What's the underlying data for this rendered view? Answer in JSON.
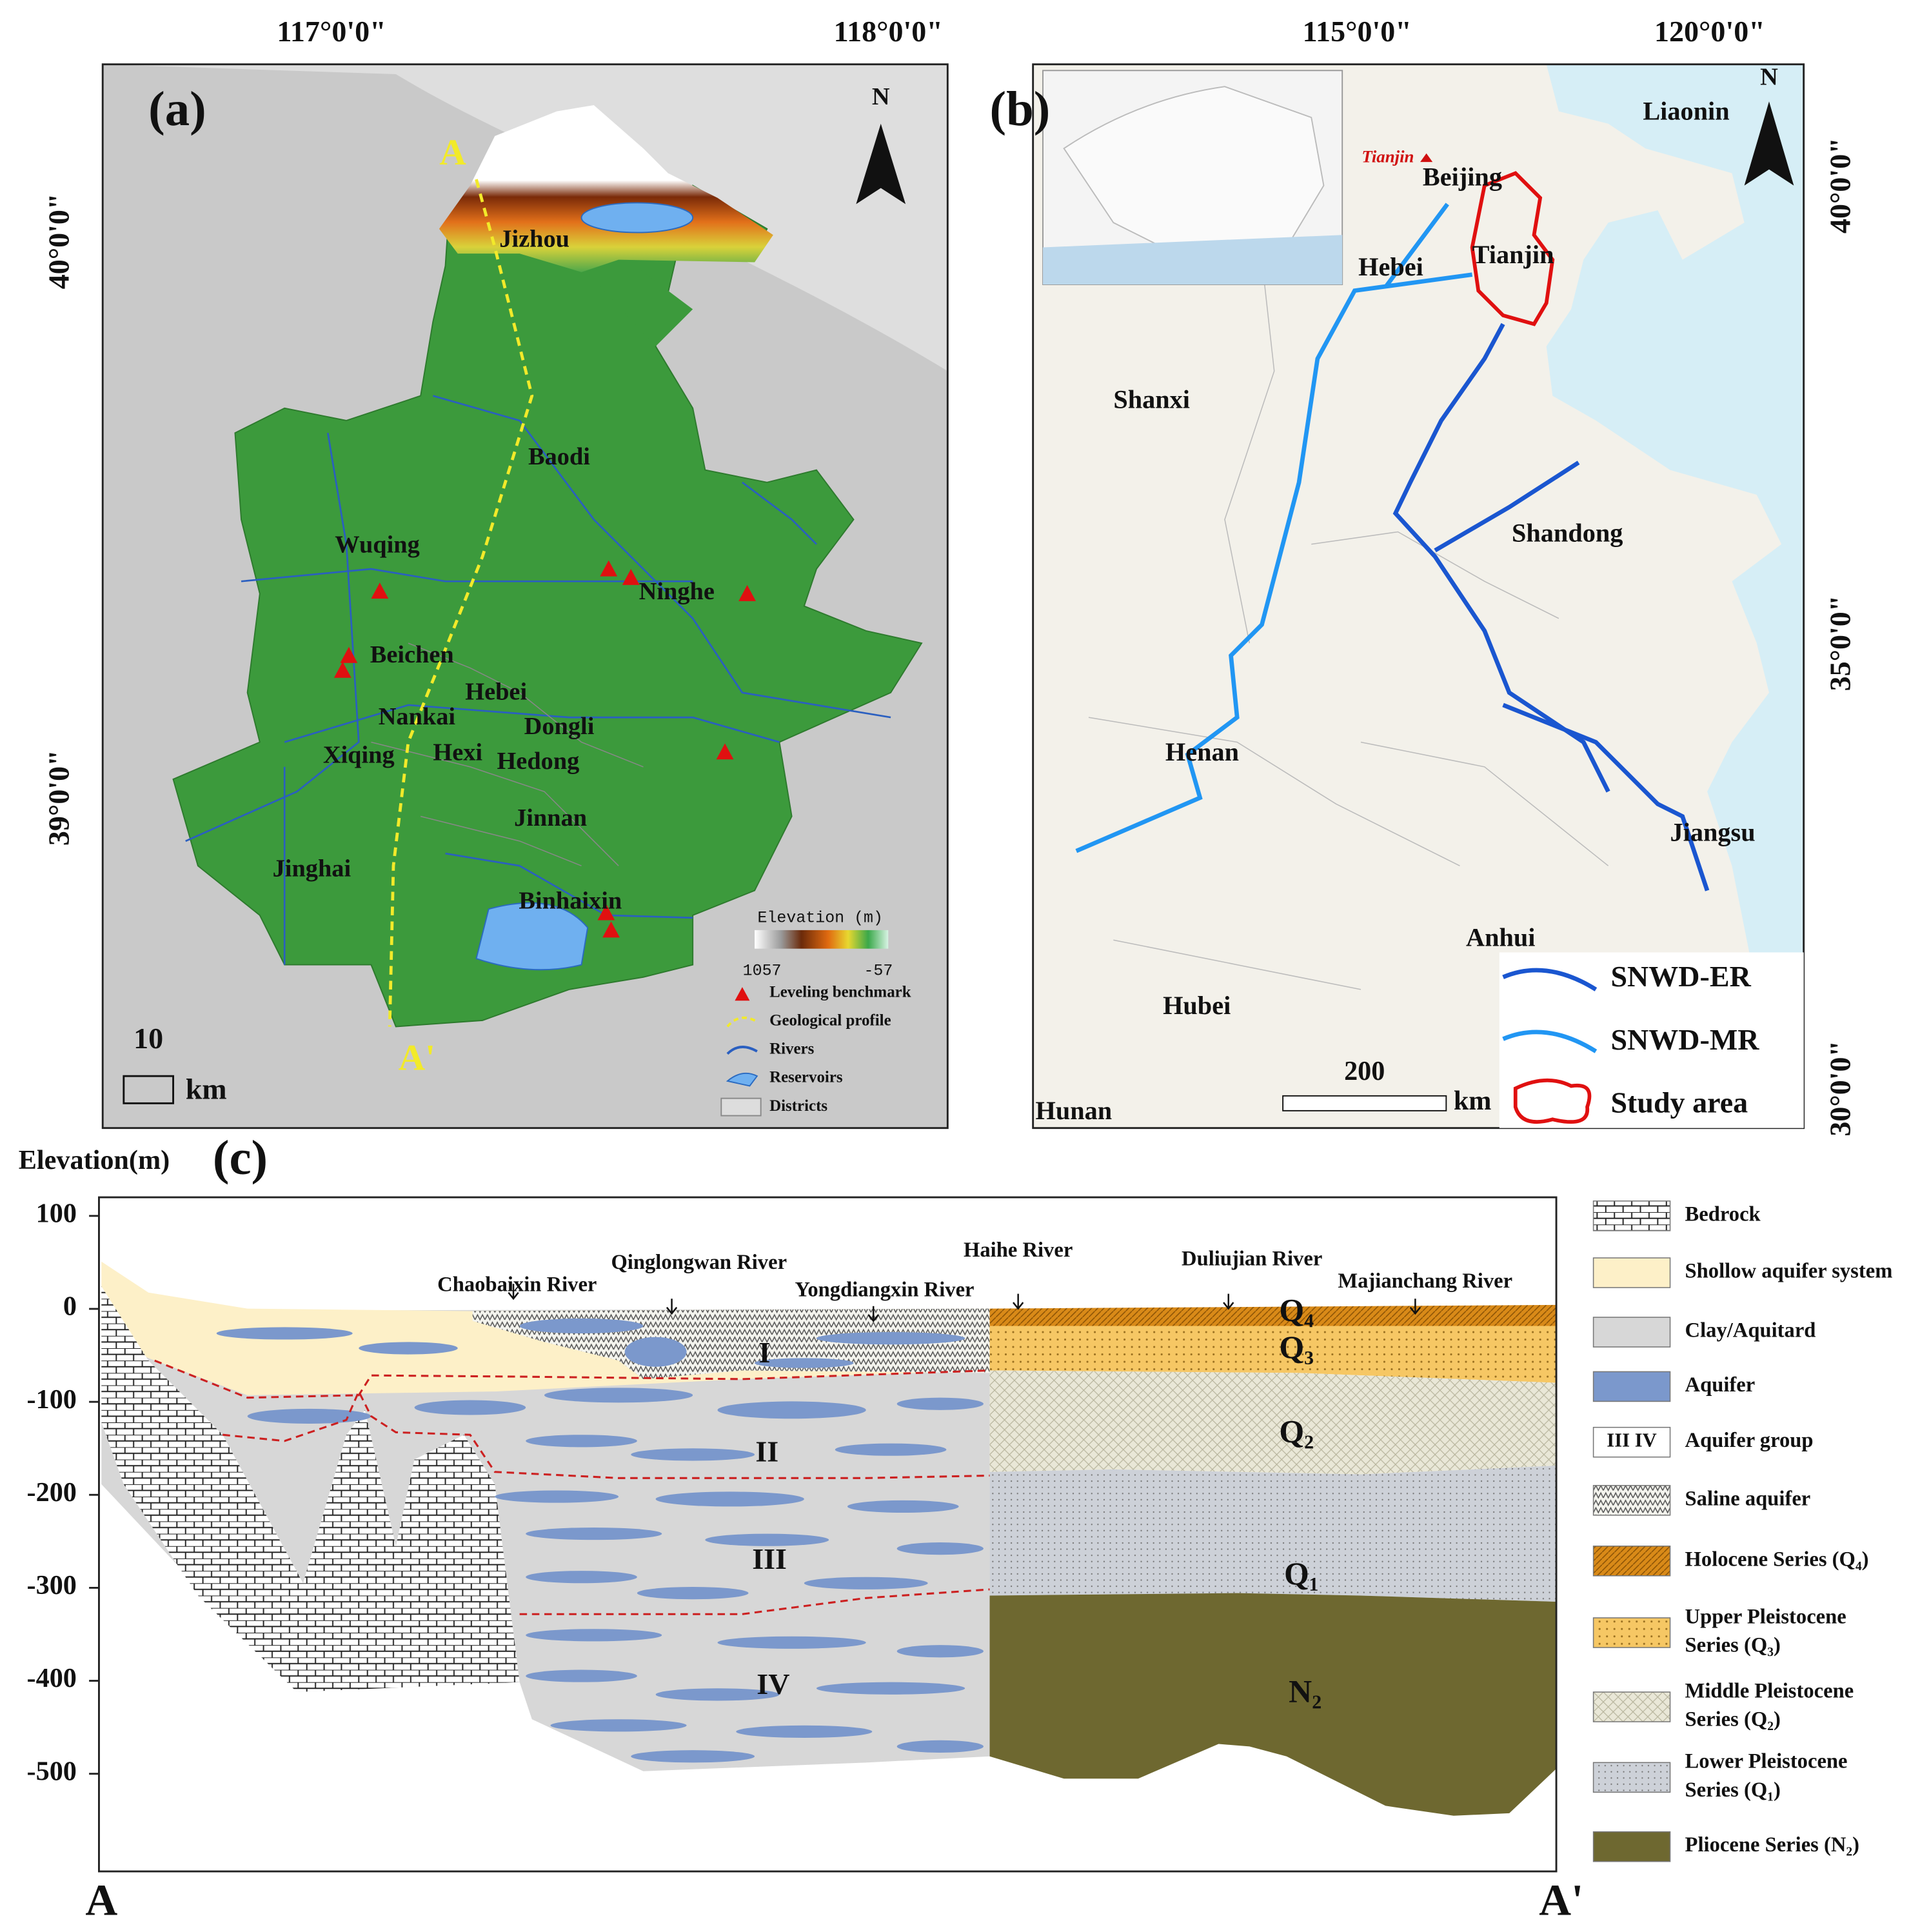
{
  "panel_a": {
    "label": "(a)",
    "lon_ticks": [
      "117°0'0\"",
      "118°0'0\""
    ],
    "lat_ticks": [
      "40°0'0\"",
      "39°0'0\""
    ],
    "north": "N",
    "profile_start": "A",
    "profile_end": "A'",
    "districts": [
      "Jizhou",
      "Baodi",
      "Wuqing",
      "Ninghe",
      "Beichen",
      "Hebei",
      "Nankai",
      "Dongli",
      "Xiqing",
      "Hexi",
      "Hedong",
      "Jinnan",
      "Jinghai",
      "Binhaixin"
    ],
    "elevation_title": "Elevation (m)",
    "elevation_max": 1057,
    "elevation_min": -57,
    "legend": [
      "Leveling benchmark",
      "Geological profile",
      "Rivers",
      "Reservoirs",
      "Districts"
    ],
    "scale": "10",
    "scale_unit": "km"
  },
  "panel_b": {
    "label": "(b)",
    "lon_ticks": [
      "115°0'0\"",
      "120°0'0\""
    ],
    "lat_ticks": [
      "40°0'0\"",
      "35°0'0\"",
      "30°0'0\""
    ],
    "north": "N",
    "inset_label": "Tianjin",
    "places": [
      "Liaonin",
      "Beijing",
      "Tianjin",
      "Hebei",
      "Shanxi",
      "Shandong",
      "Henan",
      "Jiangsu",
      "Anhui",
      "Hubei",
      "Hunan"
    ],
    "legend": [
      "SNWD-ER",
      "SNWD-MR",
      "Study area"
    ],
    "scale": "200",
    "scale_unit": "km"
  },
  "panel_c": {
    "label": "(c)",
    "y_title": "Elevation(m)",
    "ylim": [
      -605,
      120
    ],
    "yticks": [
      100,
      0,
      -100,
      -200,
      -300,
      -400,
      -500
    ],
    "rivers": [
      "Chaobaixin River",
      "Qinglongwan River",
      "Yongdiangxin River",
      "Haihe River",
      "Duliujian River",
      "Majianchang River"
    ],
    "aquifer_groups": [
      "I",
      "II",
      "III",
      "IV"
    ],
    "series": [
      "Q₄",
      "Q₃",
      "Q₂",
      "Q₁",
      "N₂"
    ],
    "profile_start": "A",
    "profile_end": "A'",
    "legend": [
      [
        "Bedrock"
      ],
      [
        "Shollow aquifer system"
      ],
      [
        "Clay/Aquitard"
      ],
      [
        "Aquifer"
      ],
      [
        "Aquifer group"
      ],
      [
        "Saline aquifer"
      ],
      [
        "Holocene Series (Q₄)"
      ],
      [
        "Upper Pleistocene",
        "Series (Q₃)"
      ],
      [
        "Middle Pleistocene",
        "Series (Q₂)"
      ],
      [
        "Lower Pleistocene",
        "Series (Q₁)"
      ],
      [
        "Pliocene Series (N₂)"
      ]
    ],
    "group_swatch": "III  IV"
  }
}
